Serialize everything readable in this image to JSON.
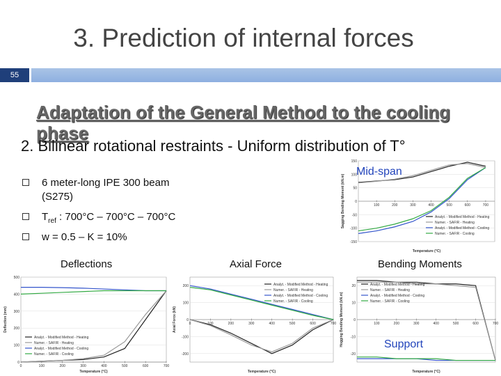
{
  "header": {
    "title": "3. Prediction of internal forces",
    "slide_number": "55"
  },
  "heading": "Adaptation of the General Method to the cooling phase",
  "subheading": "2. Bilinear rotational restraints - Uniform distribution of T°",
  "bullets": [
    {
      "text": "6 meter-long IPE 300 beam (S275)"
    },
    {
      "text": "T",
      "sub": "ref",
      "rest": " : 700°C – 700°C – 700°C"
    },
    {
      "text": "w = 0.5 – K = 10%"
    }
  ],
  "captions": {
    "mid_span": "Mid-span",
    "support": "Support",
    "deflections": "Deflections",
    "axial_force": "Axial Force",
    "bending_moments": "Bending Moments"
  },
  "charts": [
    {
      "type": "line",
      "xlabel": "Temperature (°C)",
      "ylabel": "Sagging Bending Moment (kN.m)",
      "x": [
        0,
        100,
        200,
        300,
        400,
        500,
        600,
        700
      ],
      "xlim": [
        0,
        750
      ],
      "xticks": [
        100,
        200,
        300,
        400,
        500,
        600,
        700
      ],
      "ylim": [
        -150,
        150
      ],
      "yticks": [
        -150,
        -100,
        -50,
        0,
        50,
        100,
        150
      ],
      "legend_loc": "lower right",
      "series": [
        {
          "name": "Analyt. - Modified Method - Heating",
          "color": "#222222",
          "values": [
            70,
            75,
            80,
            90,
            110,
            130,
            145,
            130
          ]
        },
        {
          "name": "Numer. - SAFIR - Heating",
          "color": "#999999",
          "values": [
            68,
            74,
            82,
            95,
            115,
            135,
            140,
            125
          ]
        },
        {
          "name": "Analyt. - Modified Method - Cooling",
          "color": "#3355cc",
          "values": [
            -120,
            -110,
            -95,
            -75,
            -40,
            10,
            80,
            125
          ]
        },
        {
          "name": "Numer. - SAFIR - Cooling",
          "color": "#33aa44",
          "values": [
            -110,
            -100,
            -85,
            -65,
            -35,
            15,
            85,
            125
          ]
        }
      ]
    },
    {
      "type": "line",
      "xlabel": "Temperature (°C)",
      "ylabel": "Deflection (mm)",
      "x": [
        0,
        100,
        200,
        300,
        400,
        500,
        600,
        700
      ],
      "xlim": [
        0,
        700
      ],
      "xticks": [
        0,
        100,
        200,
        300,
        400,
        500,
        600,
        700
      ],
      "ylim": [
        0,
        500
      ],
      "yticks": [
        0,
        100,
        200,
        300,
        400,
        500
      ],
      "legend_loc": "lower left",
      "series": [
        {
          "name": "Analyt. - Modified Method - Heating",
          "color": "#222222",
          "values": [
            0,
            5,
            10,
            15,
            30,
            80,
            250,
            420
          ]
        },
        {
          "name": "Numer. - SAFIR - Heating",
          "color": "#999999",
          "values": [
            0,
            5,
            10,
            20,
            40,
            120,
            280,
            420
          ]
        },
        {
          "name": "Analyt. - Modified Method - Cooling",
          "color": "#3355cc",
          "values": [
            440,
            440,
            438,
            435,
            430,
            425,
            420,
            420
          ]
        },
        {
          "name": "Numer. - SAFIR - Cooling",
          "color": "#33aa44",
          "values": [
            400,
            405,
            410,
            415,
            420,
            420,
            420,
            420
          ]
        }
      ]
    },
    {
      "type": "line",
      "xlabel": "Temperature (°C)",
      "ylabel": "Axial Force (kN)",
      "x": [
        0,
        100,
        200,
        300,
        400,
        500,
        600,
        700
      ],
      "xlim": [
        0,
        700
      ],
      "xticks": [
        0,
        100,
        200,
        300,
        400,
        500,
        600,
        700
      ],
      "ylim": [
        -250,
        250
      ],
      "yticks": [
        -200,
        -100,
        0,
        100,
        200
      ],
      "legend_loc": "upper right",
      "series": [
        {
          "name": "Analyt. - Modified Method - Heating",
          "color": "#222222",
          "values": [
            0,
            -30,
            -80,
            -140,
            -200,
            -150,
            -60,
            0
          ]
        },
        {
          "name": "Numer. - SAFIR - Heating",
          "color": "#999999",
          "values": [
            0,
            -35,
            -90,
            -150,
            -190,
            -140,
            -50,
            0
          ]
        },
        {
          "name": "Analyt. - Modified Method - Cooling",
          "color": "#3355cc",
          "values": [
            200,
            180,
            150,
            120,
            90,
            60,
            30,
            0
          ]
        },
        {
          "name": "Numer. - SAFIR - Cooling",
          "color": "#33aa44",
          "values": [
            190,
            175,
            145,
            115,
            85,
            55,
            25,
            0
          ]
        }
      ]
    },
    {
      "type": "line",
      "xlabel": "Temperature (°C)",
      "ylabel": "Hogging Bending Moment (kN.m)",
      "x": [
        0,
        100,
        200,
        300,
        400,
        500,
        600,
        700
      ],
      "xlim": [
        0,
        700
      ],
      "xticks": [
        100,
        200,
        300,
        400,
        500,
        600,
        700
      ],
      "ylim": [
        -25,
        25
      ],
      "yticks": [
        -20,
        -10,
        0,
        10,
        20
      ],
      "legend_loc": "upper left",
      "series": [
        {
          "name": "Analyt. - Modified Method - Heating",
          "color": "#222222",
          "values": [
            23,
            23,
            22,
            22,
            21,
            21,
            20,
            -24
          ]
        },
        {
          "name": "Numer. - SAFIR - Heating",
          "color": "#999999",
          "values": [
            22,
            22,
            22,
            21,
            21,
            20,
            19,
            -24
          ]
        },
        {
          "name": "Analyt. - Modified Method - Cooling",
          "color": "#3355cc",
          "values": [
            -23,
            -23,
            -23,
            -23,
            -24,
            -24,
            -24,
            -24
          ]
        },
        {
          "name": "Numer. - SAFIR - Cooling",
          "color": "#33aa44",
          "values": [
            -22,
            -22,
            -23,
            -23,
            -23,
            -24,
            -24,
            -24
          ]
        }
      ]
    }
  ]
}
